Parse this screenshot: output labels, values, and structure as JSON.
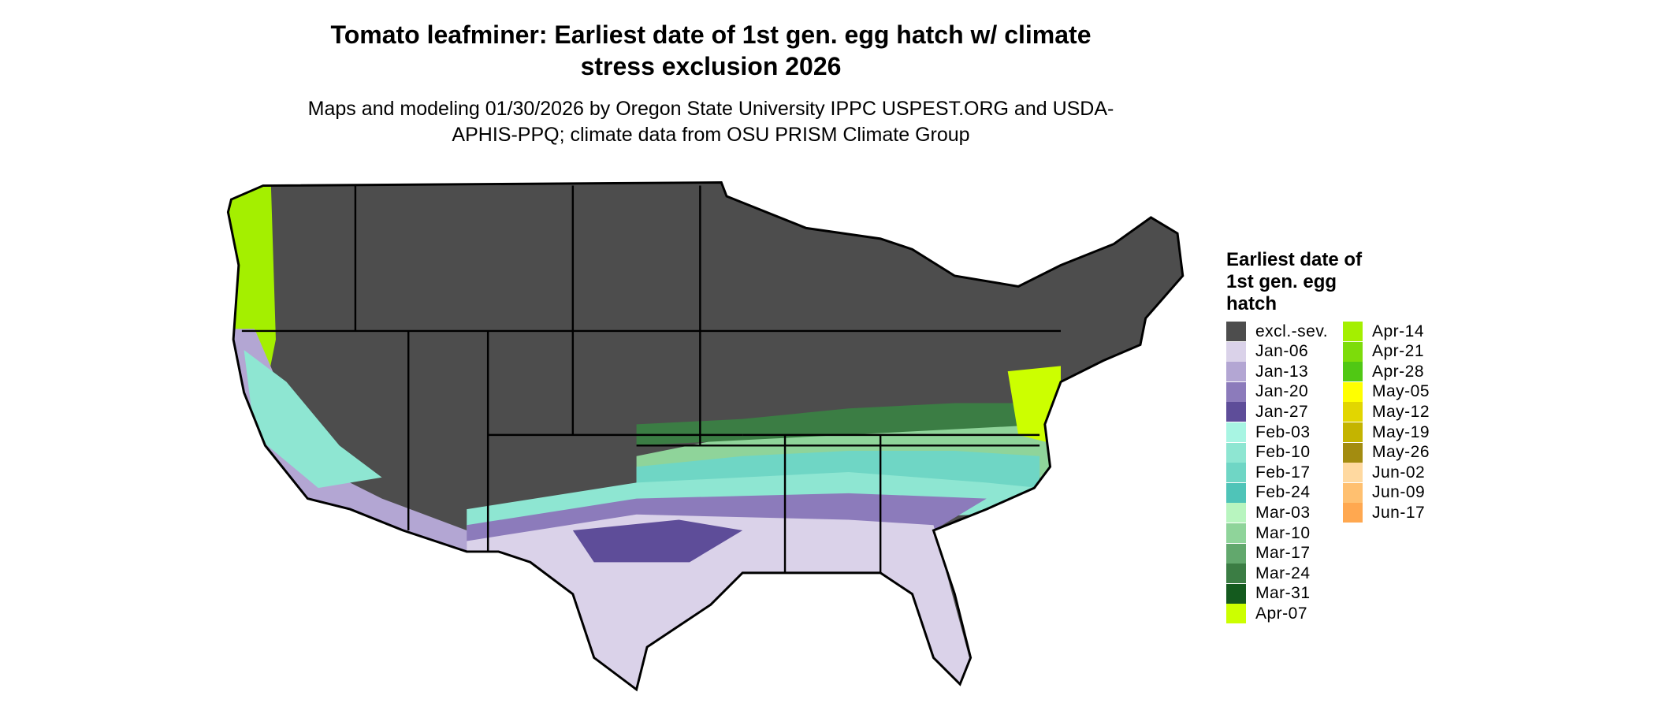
{
  "title": "Tomato leafminer: Earliest date of 1st gen. egg hatch w/ climate stress exclusion 2026",
  "subtitle": "Maps and modeling 01/30/2026 by Oregon State University IPPC USPEST.ORG and USDA-APHIS-PPQ; climate data from OSU PRISM Climate Group",
  "legend": {
    "title": "Earliest date of 1st gen. egg hatch",
    "items": [
      {
        "label": "excl.-sev.",
        "color": "#4d4d4d"
      },
      {
        "label": "Jan-06",
        "color": "#dad2e9"
      },
      {
        "label": "Jan-13",
        "color": "#b3a6d3"
      },
      {
        "label": "Jan-20",
        "color": "#8c7bbb"
      },
      {
        "label": "Jan-27",
        "color": "#5e4d99"
      },
      {
        "label": "Feb-03",
        "color": "#a8f5e3"
      },
      {
        "label": "Feb-10",
        "color": "#8ee6d2"
      },
      {
        "label": "Feb-17",
        "color": "#6fd6c5"
      },
      {
        "label": "Feb-24",
        "color": "#4fc4b8"
      },
      {
        "label": "Mar-03",
        "color": "#b8f5bf"
      },
      {
        "label": "Mar-10",
        "color": "#8fd49a"
      },
      {
        "label": "Mar-17",
        "color": "#62a86d"
      },
      {
        "label": "Mar-24",
        "color": "#3b7d44"
      },
      {
        "label": "Mar-31",
        "color": "#145a1e"
      },
      {
        "label": "Apr-07",
        "color": "#ccff00"
      },
      {
        "label": "Apr-14",
        "color": "#a4ef00"
      },
      {
        "label": "Apr-21",
        "color": "#7ddc0a"
      },
      {
        "label": "Apr-28",
        "color": "#50c814"
      },
      {
        "label": "May-05",
        "color": "#ffff00"
      },
      {
        "label": "May-12",
        "color": "#e2d600"
      },
      {
        "label": "May-19",
        "color": "#c4b400"
      },
      {
        "label": "May-26",
        "color": "#a38c10"
      },
      {
        "label": "Jun-02",
        "color": "#ffd9a0"
      },
      {
        "label": "Jun-09",
        "color": "#ffc070"
      },
      {
        "label": "Jun-17",
        "color": "#ffa850"
      }
    ]
  }
}
